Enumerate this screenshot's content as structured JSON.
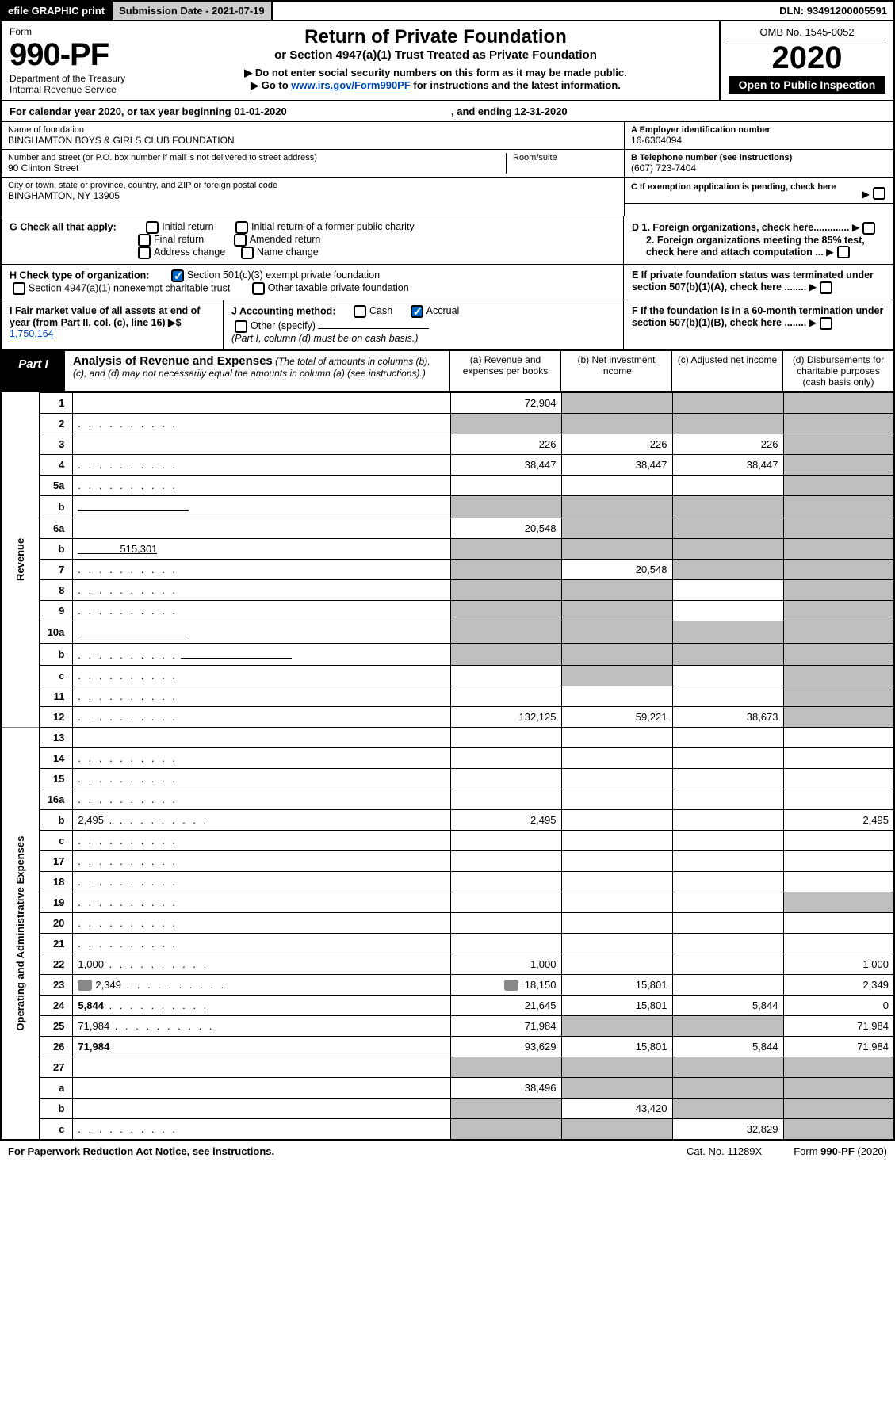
{
  "topbar": {
    "efile": "efile GRAPHIC print",
    "subm_label": "Submission Date - ",
    "subm_date": "2021-07-19",
    "dln_label": "DLN: ",
    "dln": "93491200005591"
  },
  "header": {
    "form_word": "Form",
    "form_no": "990-PF",
    "dept1": "Department of the Treasury",
    "dept2": "Internal Revenue Service",
    "title": "Return of Private Foundation",
    "subtitle": "or Section 4947(a)(1) Trust Treated as Private Foundation",
    "warn": "▶ Do not enter social security numbers on this form as it may be made public.",
    "goto_pre": "▶ Go to ",
    "goto_link": "www.irs.gov/Form990PF",
    "goto_post": " for instructions and the latest information.",
    "omb": "OMB No. 1545-0052",
    "year": "2020",
    "open": "Open to Public Inspection"
  },
  "cal": {
    "pre": "For calendar year 2020, or tax year beginning ",
    "begin": "01-01-2020",
    "mid": " , and ending ",
    "end": "12-31-2020"
  },
  "info": {
    "name_label": "Name of foundation",
    "name": "BINGHAMTON BOYS & GIRLS CLUB FOUNDATION",
    "addr_label": "Number and street (or P.O. box number if mail is not delivered to street address)",
    "addr": "90 Clinton Street",
    "room_label": "Room/suite",
    "city_label": "City or town, state or province, country, and ZIP or foreign postal code",
    "city": "BINGHAMTON, NY  13905",
    "a_label": "A Employer identification number",
    "a_val": "16-6304094",
    "b_label": "B Telephone number (see instructions)",
    "b_val": "(607) 723-7404",
    "c_label": "C If exemption application is pending, check here"
  },
  "g": {
    "label": "G Check all that apply:",
    "opts": [
      "Initial return",
      "Initial return of a former public charity",
      "Final return",
      "Amended return",
      "Address change",
      "Name change"
    ]
  },
  "h": {
    "label": "H Check type of organization:",
    "o1": "Section 501(c)(3) exempt private foundation",
    "o2": "Section 4947(a)(1) nonexempt charitable trust",
    "o3": "Other taxable private foundation"
  },
  "i": {
    "label": "I Fair market value of all assets at end of year (from Part II, col. (c), line 16) ▶$ ",
    "val": "1,750,164"
  },
  "j": {
    "label": "J Accounting method:",
    "cash": "Cash",
    "accrual": "Accrual",
    "other": "Other (specify)",
    "note": "(Part I, column (d) must be on cash basis.)"
  },
  "d": {
    "d1": "D 1. Foreign organizations, check here.............",
    "d2": "2. Foreign organizations meeting the 85% test, check here and attach computation ...",
    "e": "E  If private foundation status was terminated under section 507(b)(1)(A), check here ........",
    "f": "F  If the foundation is in a 60-month termination under section 507(b)(1)(B), check here ........"
  },
  "part1": {
    "label": "Part I",
    "title": "Analysis of Revenue and Expenses",
    "note": "(The total of amounts in columns (b), (c), and (d) may not necessarily equal the amounts in column (a) (see instructions).)",
    "col_a": "(a)   Revenue and expenses per books",
    "col_b": "(b)  Net investment income",
    "col_c": "(c)  Adjusted net income",
    "col_d": "(d)  Disbursements for charitable purposes (cash basis only)"
  },
  "sections": {
    "revenue": "Revenue",
    "opex": "Operating and Administrative Expenses"
  },
  "rows": [
    {
      "n": "1",
      "d": "",
      "a": "72,904",
      "b": "",
      "c": "",
      "gray_b": true,
      "gray_c": true,
      "gray_d": true
    },
    {
      "n": "2",
      "d": "",
      "dots": true,
      "a": "",
      "b": "",
      "c": "",
      "gray_a": true,
      "gray_b": true,
      "gray_c": true,
      "gray_d": true,
      "bold_not": true
    },
    {
      "n": "3",
      "d": "",
      "a": "226",
      "b": "226",
      "c": "226",
      "gray_d": true
    },
    {
      "n": "4",
      "d": "",
      "dots": true,
      "a": "38,447",
      "b": "38,447",
      "c": "38,447",
      "gray_d": true
    },
    {
      "n": "5a",
      "d": "",
      "dots": true,
      "a": "",
      "b": "",
      "c": "",
      "gray_d": true
    },
    {
      "n": "b",
      "d": "",
      "inline": true,
      "a": "",
      "b": "",
      "c": "",
      "gray_a": true,
      "gray_b": true,
      "gray_c": true,
      "gray_d": true
    },
    {
      "n": "6a",
      "d": "",
      "a": "20,548",
      "b": "",
      "c": "",
      "gray_b": true,
      "gray_c": true,
      "gray_d": true
    },
    {
      "n": "b",
      "d": "",
      "inline": true,
      "inline_val": "515,301",
      "a": "",
      "b": "",
      "c": "",
      "gray_a": true,
      "gray_b": true,
      "gray_c": true,
      "gray_d": true
    },
    {
      "n": "7",
      "d": "",
      "dots": true,
      "a": "",
      "b": "20,548",
      "c": "",
      "gray_a": true,
      "gray_c": true,
      "gray_d": true
    },
    {
      "n": "8",
      "d": "",
      "dots": true,
      "a": "",
      "b": "",
      "c": "",
      "gray_a": true,
      "gray_b": true,
      "gray_d": true
    },
    {
      "n": "9",
      "d": "",
      "dots": true,
      "a": "",
      "b": "",
      "c": "",
      "gray_a": true,
      "gray_b": true,
      "gray_d": true
    },
    {
      "n": "10a",
      "d": "",
      "inline": true,
      "a": "",
      "b": "",
      "c": "",
      "gray_a": true,
      "gray_b": true,
      "gray_c": true,
      "gray_d": true
    },
    {
      "n": "b",
      "d": "",
      "dots": true,
      "inline": true,
      "a": "",
      "b": "",
      "c": "",
      "gray_a": true,
      "gray_b": true,
      "gray_c": true,
      "gray_d": true
    },
    {
      "n": "c",
      "d": "",
      "dots": true,
      "a": "",
      "b": "",
      "c": "",
      "gray_b": true,
      "gray_d": true
    },
    {
      "n": "11",
      "d": "",
      "dots": true,
      "a": "",
      "b": "",
      "c": "",
      "gray_d": true
    },
    {
      "n": "12",
      "d": "",
      "dots": true,
      "bold": true,
      "a": "132,125",
      "b": "59,221",
      "c": "38,673",
      "gray_d": true
    },
    {
      "n": "13",
      "d": "",
      "a": "",
      "b": "",
      "c": ""
    },
    {
      "n": "14",
      "d": "",
      "dots": true,
      "a": "",
      "b": "",
      "c": ""
    },
    {
      "n": "15",
      "d": "",
      "dots": true,
      "a": "",
      "b": "",
      "c": ""
    },
    {
      "n": "16a",
      "d": "",
      "dots": true,
      "a": "",
      "b": "",
      "c": ""
    },
    {
      "n": "b",
      "d": "2,495",
      "dots": true,
      "a": "2,495",
      "b": "",
      "c": ""
    },
    {
      "n": "c",
      "d": "",
      "dots": true,
      "a": "",
      "b": "",
      "c": ""
    },
    {
      "n": "17",
      "d": "",
      "dots": true,
      "a": "",
      "b": "",
      "c": ""
    },
    {
      "n": "18",
      "d": "",
      "dots": true,
      "a": "",
      "b": "",
      "c": ""
    },
    {
      "n": "19",
      "d": "",
      "dots": true,
      "a": "",
      "b": "",
      "c": "",
      "gray_d": true
    },
    {
      "n": "20",
      "d": "",
      "dots": true,
      "a": "",
      "b": "",
      "c": ""
    },
    {
      "n": "21",
      "d": "",
      "dots": true,
      "a": "",
      "b": "",
      "c": ""
    },
    {
      "n": "22",
      "d": "1,000",
      "dots": true,
      "a": "1,000",
      "b": "",
      "c": ""
    },
    {
      "n": "23",
      "d": "2,349",
      "dots": true,
      "icon": true,
      "a": "18,150",
      "b": "15,801",
      "c": ""
    },
    {
      "n": "24",
      "d": "5,844",
      "dots": true,
      "bold": true,
      "a": "21,645",
      "b": "15,801",
      "c": "",
      "d2": "0"
    },
    {
      "n": "25",
      "d": "71,984",
      "dots": true,
      "a": "71,984",
      "b": "",
      "c": "",
      "gray_b": true,
      "gray_c": true
    },
    {
      "n": "26",
      "d": "71,984",
      "bold": true,
      "a": "93,629",
      "b": "15,801",
      "c": "5,844"
    },
    {
      "n": "27",
      "d": "",
      "a": "",
      "b": "",
      "c": "",
      "gray_a": true,
      "gray_b": true,
      "gray_c": true,
      "gray_d": true
    },
    {
      "n": "a",
      "d": "",
      "bold": true,
      "a": "38,496",
      "b": "",
      "c": "",
      "gray_b": true,
      "gray_c": true,
      "gray_d": true
    },
    {
      "n": "b",
      "d": "",
      "bold": true,
      "a": "",
      "b": "43,420",
      "c": "",
      "gray_a": true,
      "gray_c": true,
      "gray_d": true
    },
    {
      "n": "c",
      "d": "",
      "bold": true,
      "dots": true,
      "a": "",
      "b": "",
      "c": "32,829",
      "gray_a": true,
      "gray_b": true,
      "gray_d": true
    }
  ],
  "footer": {
    "left": "For Paperwork Reduction Act Notice, see instructions.",
    "mid": "Cat. No. 11289X",
    "right_pre": "Form ",
    "right_form": "990-PF",
    "right_post": " (2020)"
  }
}
